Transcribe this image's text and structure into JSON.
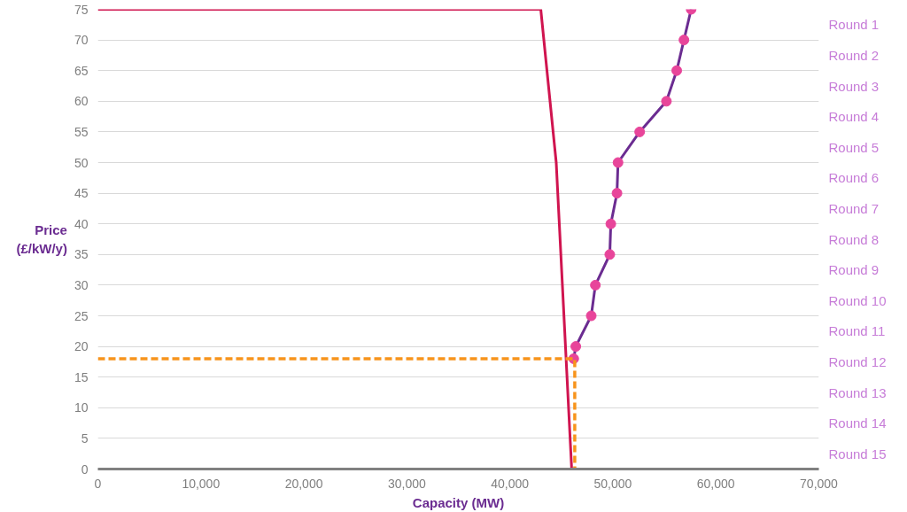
{
  "chart_data": {
    "type": "line",
    "xlabel": "Capacity (MW)",
    "ylabel": "Price (£/kW/y)",
    "xlim": [
      0,
      70000
    ],
    "xticks": [
      {
        "value": 0,
        "label": "0"
      },
      {
        "value": 10000,
        "label": "10,000"
      },
      {
        "value": 20000,
        "label": "20,000"
      },
      {
        "value": 30000,
        "label": "30,000"
      },
      {
        "value": 40000,
        "label": "40,000"
      },
      {
        "value": 50000,
        "label": "50,000"
      },
      {
        "value": 60000,
        "label": "60,000"
      },
      {
        "value": 70000,
        "label": "70,000"
      }
    ],
    "ylim": [
      0,
      75
    ],
    "yticks": [
      0,
      5,
      10,
      15,
      20,
      25,
      30,
      35,
      40,
      45,
      50,
      55,
      60,
      65,
      70,
      75
    ],
    "annotations": [
      "Round 1",
      "Round 2",
      "Round 3",
      "Round 4",
      "Round 5",
      "Round 6",
      "Round 7",
      "Round 8",
      "Round 9",
      "Round 10",
      "Round 11",
      "Round 12",
      "Round 13",
      "Round 14",
      "Round 15"
    ],
    "grid": "y",
    "series": [
      {
        "color": "#d0144f",
        "x": [
          0,
          43000,
          44500,
          46000
        ],
        "values": [
          75,
          75,
          50,
          0
        ],
        "marker": "none",
        "line_style": "solid"
      },
      {
        "color": "#6b2c91",
        "colors": [
          "#e8459a",
          "#e8459a",
          "#e8459a",
          "#e8459a",
          "#e8459a",
          "#e8459a",
          "#e8459a",
          "#e8459a",
          "#e8459a",
          "#e8459a",
          "#e8459a",
          "#e8459a",
          "#e8459a"
        ],
        "x": [
          57600,
          56900,
          56200,
          55200,
          52600,
          50500,
          50400,
          49800,
          49700,
          48300,
          47900,
          46400,
          46200
        ],
        "values": [
          75,
          70,
          65,
          60,
          55,
          50,
          45,
          40,
          35,
          30,
          25,
          20,
          18
        ],
        "marker": "circle",
        "line_style": "solid"
      },
      {
        "color": "#f7941d",
        "x": [
          0,
          46300,
          46300
        ],
        "values": [
          18,
          18,
          0
        ],
        "marker": "none",
        "line_style": "dashed"
      }
    ]
  }
}
